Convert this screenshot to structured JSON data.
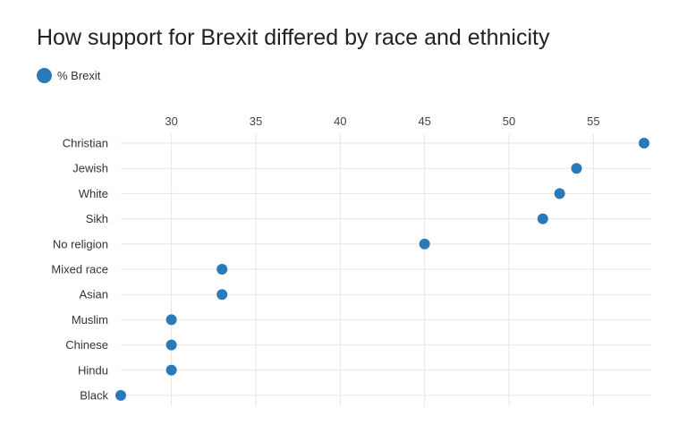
{
  "chart_data": {
    "type": "scatter",
    "title": "How support for Brexit differed by race and ethnicity",
    "legend": [
      {
        "label": "% Brexit",
        "color": "#2a7ab9"
      }
    ],
    "categories": [
      "Christian",
      "Jewish",
      "White",
      "Sikh",
      "No religion",
      "Mixed race",
      "Asian",
      "Muslim",
      "Chinese",
      "Hindu",
      "Black"
    ],
    "values": [
      58,
      54,
      53,
      52,
      45,
      33,
      33,
      30,
      30,
      30,
      27
    ],
    "xticks": [
      30,
      35,
      40,
      45,
      50,
      55
    ],
    "xlim": [
      27,
      58
    ],
    "legend_position": "top-left",
    "axis_position": "top",
    "grid": true,
    "colors": {
      "point": "#2a7ab9",
      "grid": "#e6e6e6"
    }
  }
}
